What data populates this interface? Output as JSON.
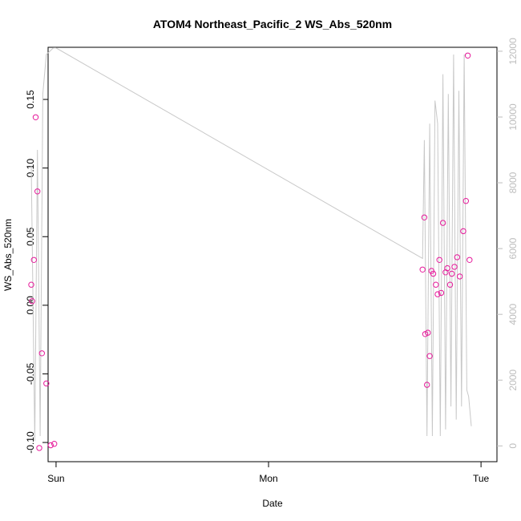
{
  "chart_data": {
    "type": "scatter",
    "title": "ATOM4 Northeast_Pacific_2 WS_Abs_520nm",
    "xlabel": "Date",
    "ylabel": "WS_Abs_520nm",
    "x_unit": "hours since Sun 00:00",
    "xlim": [
      -0.9,
      49.8
    ],
    "ylim": [
      -0.114,
      0.188
    ],
    "y2lim": [
      -480,
      12120
    ],
    "x_ticks": [
      {
        "value": 0,
        "label": "Sun"
      },
      {
        "value": 24,
        "label": "Mon"
      },
      {
        "value": 48,
        "label": "Tue"
      }
    ],
    "y_ticks": [
      {
        "value": -0.1,
        "label": "-0.10"
      },
      {
        "value": -0.05,
        "label": "-0.05"
      },
      {
        "value": 0.0,
        "label": "0.00"
      },
      {
        "value": 0.05,
        "label": "0.05"
      },
      {
        "value": 0.1,
        "label": "0.10"
      },
      {
        "value": 0.15,
        "label": "0.15"
      }
    ],
    "y2_ticks": [
      {
        "value": 0,
        "label": "0"
      },
      {
        "value": 2000,
        "label": "2000"
      },
      {
        "value": 4000,
        "label": "4000"
      },
      {
        "value": 6000,
        "label": "6000"
      },
      {
        "value": 8000,
        "label": "8000"
      },
      {
        "value": 10000,
        "label": "10000"
      },
      {
        "value": 12000,
        "label": "12000"
      }
    ],
    "colors": {
      "points": "#e6199a",
      "line": "#c8c8c8",
      "right_axis": "#bdbdbd"
    },
    "series": [
      {
        "axis": "left",
        "kind": "points",
        "x": [
          -2.8,
          -2.7,
          -2.5,
          -2.3,
          -2.1,
          -1.9,
          -1.6,
          -1.1,
          -0.6,
          -0.2,
          41.4,
          41.6,
          41.7,
          41.9,
          42.0,
          42.2,
          42.4,
          42.6,
          42.9,
          43.1,
          43.3,
          43.5,
          43.7,
          44.0,
          44.2,
          44.5,
          44.7,
          45.0,
          45.3,
          45.6,
          46.0,
          46.3,
          46.5,
          46.7
        ],
        "y": [
          0.015,
          0.003,
          0.033,
          0.137,
          0.083,
          -0.104,
          -0.035,
          -0.057,
          -0.102,
          -0.101,
          0.026,
          0.064,
          -0.021,
          -0.058,
          -0.02,
          -0.037,
          0.025,
          0.023,
          0.015,
          0.008,
          0.033,
          0.009,
          0.06,
          0.024,
          0.027,
          0.015,
          0.023,
          0.028,
          0.035,
          0.021,
          0.054,
          0.076,
          0.182,
          0.033
        ]
      },
      {
        "axis": "right",
        "kind": "line",
        "x": [
          -2.8,
          -2.4,
          -2.1,
          -1.8,
          -1.5,
          -1.1,
          -0.3,
          0.0,
          41.4,
          41.6,
          41.9,
          42.2,
          42.5,
          42.8,
          43.1,
          43.4,
          43.7,
          44.0,
          44.3,
          44.6,
          44.9,
          45.2,
          45.5,
          45.8,
          46.1,
          46.4,
          46.6,
          46.9
        ],
        "y": [
          8500,
          150,
          9000,
          300,
          10700,
          11900,
          12100,
          12100,
          5700,
          9300,
          300,
          9800,
          300,
          10500,
          9800,
          300,
          11300,
          500,
          10700,
          1200,
          11900,
          800,
          10800,
          1200,
          11900,
          1700,
          1500,
          600
        ]
      }
    ]
  }
}
